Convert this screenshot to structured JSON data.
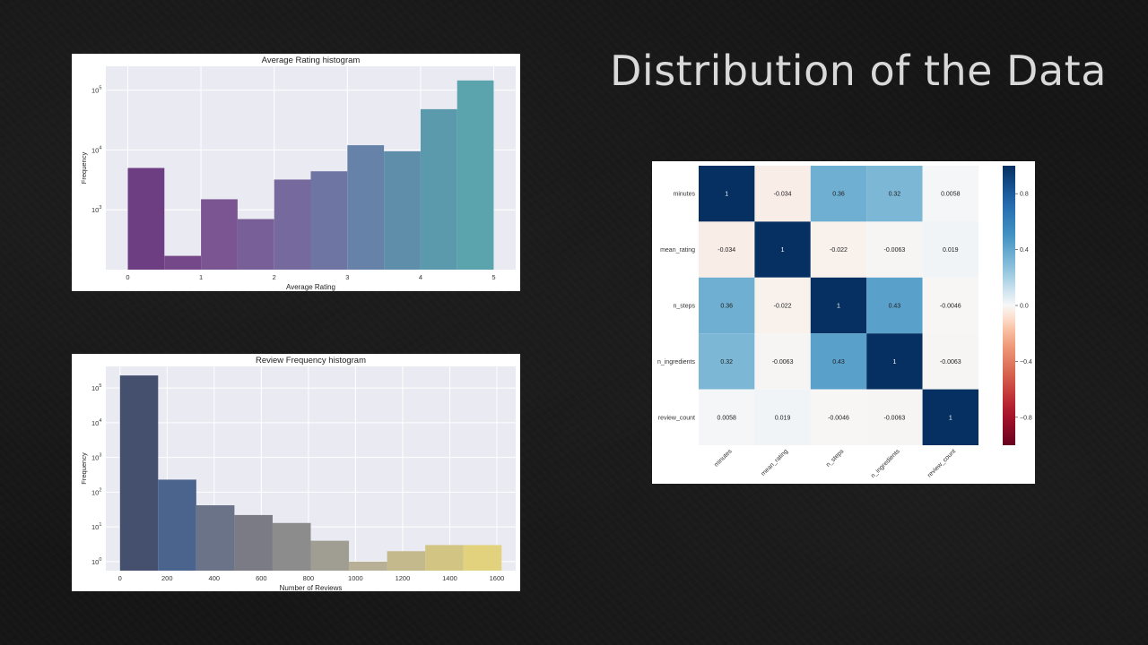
{
  "slide": {
    "title": "Distribution of the Data"
  },
  "chart_data": [
    {
      "id": "avg-rating",
      "type": "bar",
      "title": "Average Rating histogram",
      "xlabel": "Average Rating",
      "ylabel": "Frequency",
      "yscale": "log",
      "xlim": [
        -0.3,
        5.3
      ],
      "ylim": [
        100,
        250000
      ],
      "bin_edges": [
        0,
        0.5,
        1,
        1.5,
        2,
        2.5,
        3,
        3.5,
        4,
        4.5,
        5
      ],
      "values": [
        5000,
        170,
        1500,
        700,
        3200,
        4400,
        12000,
        9500,
        48000,
        145000
      ],
      "x_ticks": [
        0,
        1,
        2,
        3,
        4,
        5
      ],
      "x_tick_labels": [
        "0",
        "1",
        "2",
        "3",
        "4",
        "5"
      ],
      "y_ticks": [
        1000,
        10000,
        100000
      ],
      "y_tick_labels": [
        {
          "base": "10",
          "exp": "3"
        },
        {
          "base": "10",
          "exp": "4"
        },
        {
          "base": "10",
          "exp": "5"
        }
      ],
      "colors": [
        "#6e3e82",
        "#75488a",
        "#7a5592",
        "#795f98",
        "#75699e",
        "#6e75a3",
        "#6682a8",
        "#5f8eab",
        "#5b99ad",
        "#5ba3ad"
      ],
      "grid": true
    },
    {
      "id": "review-freq",
      "type": "bar",
      "title": "Review Frequency histogram",
      "xlabel": "Number of Reviews",
      "ylabel": "Frequency",
      "yscale": "log",
      "xlim": [
        -60,
        1680
      ],
      "ylim": [
        0.55,
        420000
      ],
      "bin_edges": [
        0,
        162,
        324,
        486,
        648,
        810,
        972,
        1134,
        1296,
        1458,
        1620
      ],
      "values": [
        230000,
        230,
        42,
        22,
        13,
        4,
        1,
        2,
        3,
        3
      ],
      "x_ticks": [
        0,
        200,
        400,
        600,
        800,
        1000,
        1200,
        1400,
        1600
      ],
      "x_tick_labels": [
        "0",
        "200",
        "400",
        "600",
        "800",
        "1000",
        "1200",
        "1400",
        "1600"
      ],
      "y_ticks": [
        1,
        10,
        100,
        1000,
        10000,
        100000
      ],
      "y_tick_labels": [
        {
          "base": "10",
          "exp": "0"
        },
        {
          "base": "10",
          "exp": "1"
        },
        {
          "base": "10",
          "exp": "2"
        },
        {
          "base": "10",
          "exp": "3"
        },
        {
          "base": "10",
          "exp": "4"
        },
        {
          "base": "10",
          "exp": "5"
        }
      ],
      "colors": [
        "#45506e",
        "#4b648e",
        "#6b7388",
        "#7a7b84",
        "#8c8c8c",
        "#a09e92",
        "#b7b096",
        "#c3b98c",
        "#d2c483",
        "#e2d27d"
      ],
      "grid": true
    },
    {
      "id": "correlation",
      "type": "heatmap",
      "labels": [
        "minutes",
        "mean_rating",
        "n_steps",
        "n_ingredients",
        "review_count"
      ],
      "matrix": [
        [
          1,
          -0.034,
          0.36,
          0.32,
          0.0058
        ],
        [
          -0.034,
          1,
          -0.022,
          -0.0063,
          0.019
        ],
        [
          0.36,
          -0.022,
          1,
          0.43,
          -0.0046
        ],
        [
          0.32,
          -0.0063,
          0.43,
          1,
          -0.0063
        ],
        [
          0.0058,
          0.019,
          -0.0046,
          -0.0063,
          1
        ]
      ],
      "annotations": [
        [
          "1",
          "-0.034",
          "0.36",
          "0.32",
          "0.0058"
        ],
        [
          "-0.034",
          "1",
          "-0.022",
          "-0.0063",
          "0.019"
        ],
        [
          "0.36",
          "-0.022",
          "1",
          "0.43",
          "-0.0046"
        ],
        [
          "0.32",
          "-0.0063",
          "0.43",
          "1",
          "-0.0063"
        ],
        [
          "0.0058",
          "0.019",
          "-0.0046",
          "-0.0063",
          "1"
        ]
      ],
      "colormap": "RdBu",
      "vmin": -1,
      "vmax": 1,
      "colorbar_ticks": [
        0.8,
        0.4,
        0.0,
        -0.4,
        -0.8
      ],
      "colorbar_tick_labels": [
        "0.8",
        "0.4",
        "0.0",
        "−0.4",
        "−0.8"
      ]
    }
  ]
}
